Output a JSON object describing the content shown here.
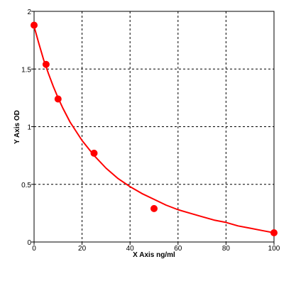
{
  "chart_data": {
    "type": "scatter",
    "title": "",
    "xlabel": "X Axis ng/ml",
    "ylabel": "Y Axis OD",
    "xlim": [
      0,
      100
    ],
    "ylim": [
      0,
      2
    ],
    "xticks": [
      0,
      20,
      40,
      60,
      80,
      100
    ],
    "yticks": [
      0,
      0.5,
      1,
      1.5,
      2
    ],
    "xtick_labels": [
      "0",
      "20",
      "40",
      "60",
      "80",
      "100"
    ],
    "ytick_labels": [
      "0",
      "0.5",
      "1",
      "1.5",
      "2"
    ],
    "grid": true,
    "grid_style": "dashed",
    "legend": "none",
    "series": [
      {
        "x": [
          0,
          5,
          10,
          25,
          50,
          100
        ],
        "y": [
          1.88,
          1.54,
          1.24,
          0.77,
          0.29,
          0.08
        ],
        "marker": "circle",
        "color": "#ff0000"
      }
    ],
    "fit_curve": {
      "color": "#ff0000",
      "x": [
        0,
        2,
        4,
        6,
        8,
        10,
        12,
        15,
        20,
        25,
        30,
        35,
        40,
        45,
        50,
        55,
        60,
        65,
        70,
        75,
        80,
        85,
        90,
        95,
        100
      ],
      "y": [
        1.87,
        1.72,
        1.58,
        1.46,
        1.35,
        1.25,
        1.16,
        1.04,
        0.88,
        0.75,
        0.64,
        0.55,
        0.48,
        0.42,
        0.37,
        0.32,
        0.28,
        0.25,
        0.22,
        0.19,
        0.17,
        0.14,
        0.12,
        0.1,
        0.08
      ]
    }
  }
}
